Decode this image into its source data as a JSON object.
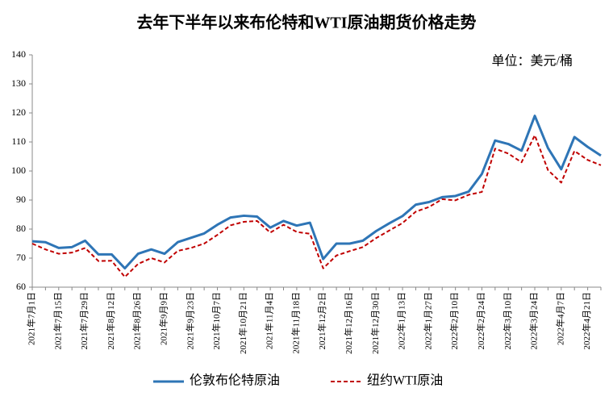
{
  "chart_data": {
    "type": "line",
    "title": "去年下半年以来布伦特和WTI原油期货价格走势",
    "annotation": "单位：美元/桶",
    "categories": [
      "2021年7月1日",
      null,
      "2021年7月15日",
      null,
      "2021年7月29日",
      null,
      "2021年8月12日",
      null,
      "2021年8月26日",
      null,
      "2021年9月9日",
      null,
      "2021年9月23日",
      null,
      "2021年10月7日",
      null,
      "2021年10月21日",
      null,
      "2021年11月4日",
      null,
      "2021年11月18日",
      null,
      "2021年12月2日",
      null,
      "2021年12月16日",
      null,
      "2021年12月30日",
      null,
      "2022年1月13日",
      null,
      "2022年1月27日",
      null,
      "2022年2月10日",
      null,
      "2022年2月24日",
      null,
      "2022年3月10日",
      null,
      "2022年3月24日",
      null,
      "2022年4月7日",
      null,
      "2022年4月21日",
      null
    ],
    "series": [
      {
        "name": "伦敦布伦特原油",
        "color": "#2e75b6",
        "dash": false,
        "values": [
          75.8,
          75.5,
          73.5,
          73.8,
          76,
          71.3,
          71.3,
          66.5,
          71.5,
          73,
          71.5,
          75.5,
          77,
          78.5,
          81.5,
          84,
          84.6,
          84.3,
          80.5,
          82.8,
          81.2,
          82.2,
          69.7,
          75,
          75,
          76,
          79.3,
          82,
          84.5,
          88.4,
          89.3,
          91,
          91.4,
          92.9,
          99,
          110.5,
          109.3,
          107,
          119,
          107.9,
          100.6,
          111.7,
          108.3,
          105.3
        ]
      },
      {
        "name": "纽约WTI原油",
        "color": "#c00000",
        "dash": true,
        "values": [
          75,
          73,
          71.5,
          71.9,
          73.5,
          69,
          69.1,
          63.5,
          68,
          70,
          68.5,
          72.5,
          73.5,
          75,
          78,
          81.3,
          82.5,
          82.8,
          78.8,
          81.5,
          79,
          78.4,
          66.5,
          70.9,
          72.4,
          73.8,
          76.9,
          79.5,
          82.1,
          86,
          87.6,
          90.3,
          89.9,
          91.8,
          92.8,
          107.7,
          106,
          103,
          112.3,
          100.3,
          96,
          106.9,
          103.8,
          102
        ]
      }
    ],
    "ylim": [
      60,
      140
    ],
    "yticks": [
      60,
      70,
      80,
      90,
      100,
      110,
      120,
      130,
      140
    ],
    "grid": false
  }
}
